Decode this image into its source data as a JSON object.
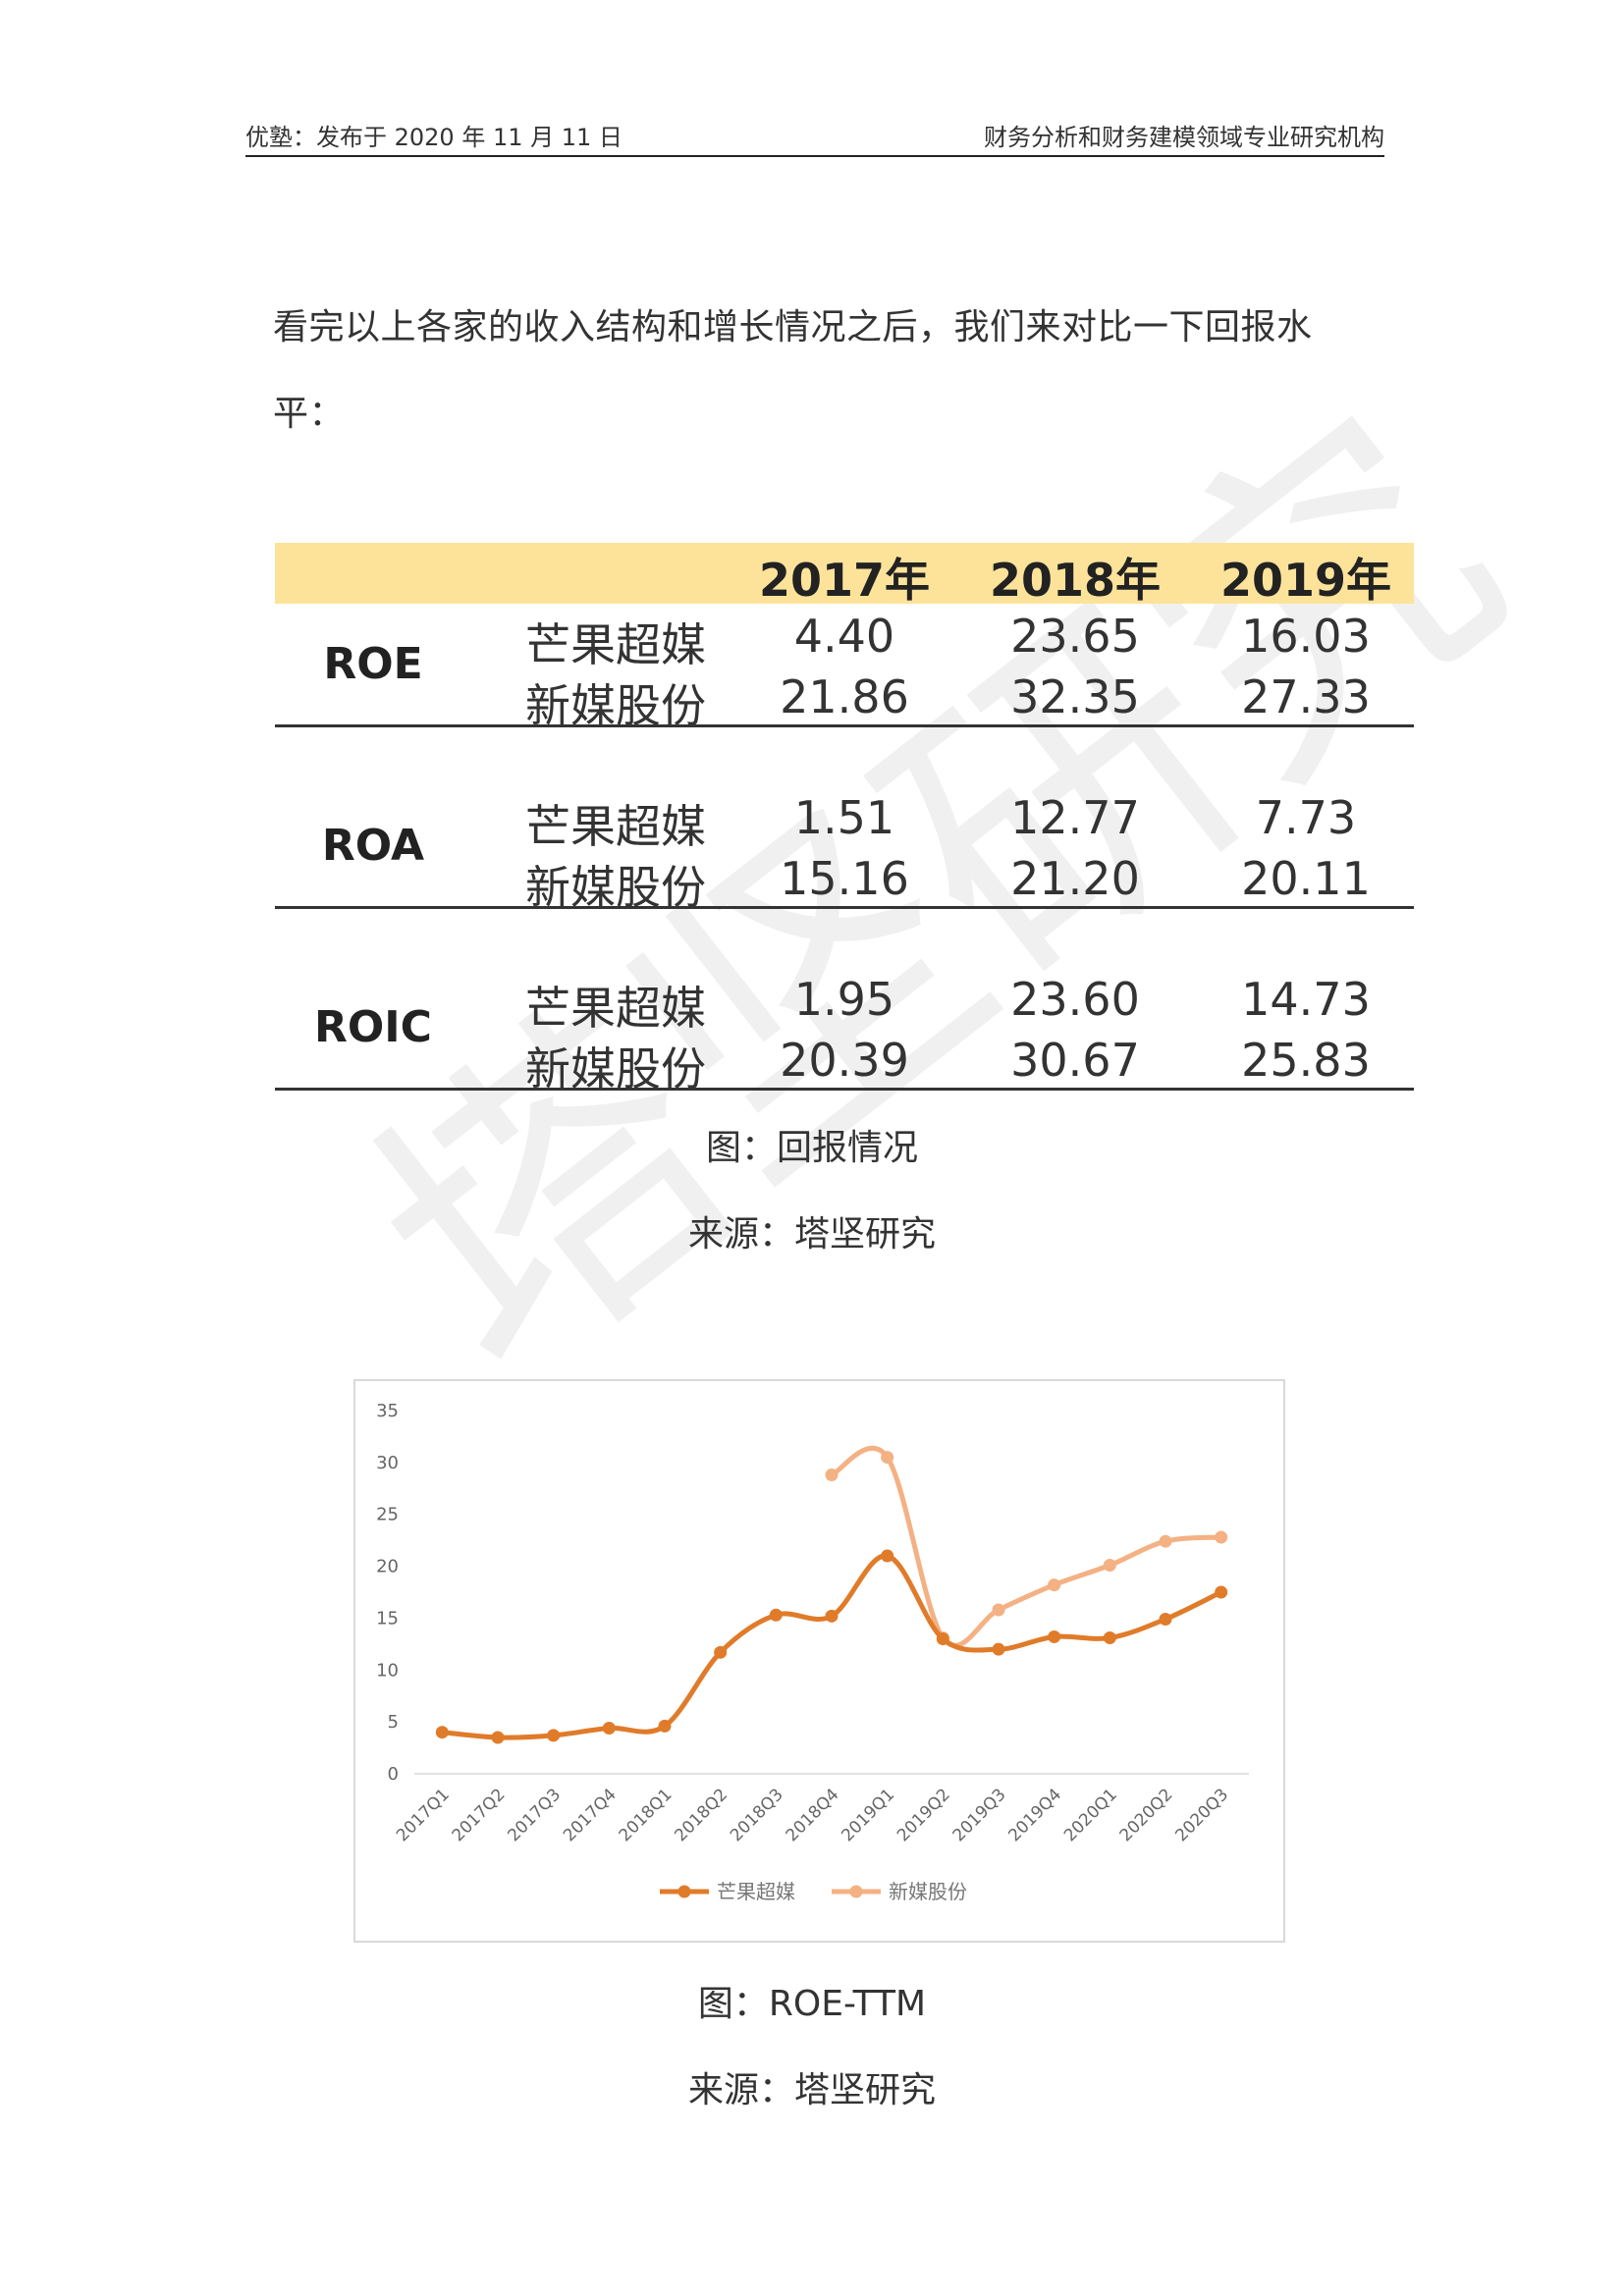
{
  "header": {
    "left": "优塾：发布于 2020 年 11 月 11 日",
    "right": "财务分析和财务建模领域专业研究机构"
  },
  "paragraph": "看完以上各家的收入结构和增长情况之后，我们来对比一下回报水平：",
  "return_table": {
    "years": [
      "2017年",
      "2018年",
      "2019年"
    ],
    "groups": [
      {
        "metric": "ROE",
        "rows": [
          {
            "company": "芒果超媒",
            "values": [
              "4.40",
              "23.65",
              "16.03"
            ]
          },
          {
            "company": "新媒股份",
            "values": [
              "21.86",
              "32.35",
              "27.33"
            ]
          }
        ]
      },
      {
        "metric": "ROA",
        "rows": [
          {
            "company": "芒果超媒",
            "values": [
              "1.51",
              "12.77",
              "7.73"
            ]
          },
          {
            "company": "新媒股份",
            "values": [
              "15.16",
              "21.20",
              "20.11"
            ]
          }
        ]
      },
      {
        "metric": "ROIC",
        "rows": [
          {
            "company": "芒果超媒",
            "values": [
              "1.95",
              "23.60",
              "14.73"
            ]
          },
          {
            "company": "新媒股份",
            "values": [
              "20.39",
              "30.67",
              "25.83"
            ]
          }
        ]
      }
    ]
  },
  "caption1": {
    "figure": "图：回报情况",
    "source": "来源：塔坚研究"
  },
  "caption2": {
    "figure": "图：ROE-TTM",
    "source": "来源：塔坚研究"
  },
  "watermark": "塔坚研究",
  "chart_data": {
    "type": "line",
    "categories": [
      "2017Q1",
      "2017Q2",
      "2017Q3",
      "2017Q4",
      "2018Q1",
      "2018Q2",
      "2018Q3",
      "2018Q4",
      "2019Q1",
      "2019Q2",
      "2019Q3",
      "2019Q4",
      "2020Q1",
      "2020Q2",
      "2020Q3"
    ],
    "ylim": [
      0,
      35
    ],
    "yticks": [
      0,
      5,
      10,
      15,
      20,
      25,
      30,
      35
    ],
    "grid": false,
    "legend": "bottom",
    "series": [
      {
        "name": "芒果超媒",
        "color": "#e07b2a",
        "values": [
          4.0,
          3.5,
          3.7,
          4.4,
          4.6,
          11.7,
          15.3,
          15.2,
          21.0,
          13.0,
          12.0,
          13.2,
          13.1,
          14.9,
          17.5
        ]
      },
      {
        "name": "新媒股份",
        "color": "#f4b183",
        "values": [
          null,
          null,
          null,
          null,
          null,
          null,
          null,
          28.8,
          30.5,
          13.1,
          15.8,
          18.2,
          20.1,
          22.4,
          22.8
        ]
      }
    ]
  }
}
